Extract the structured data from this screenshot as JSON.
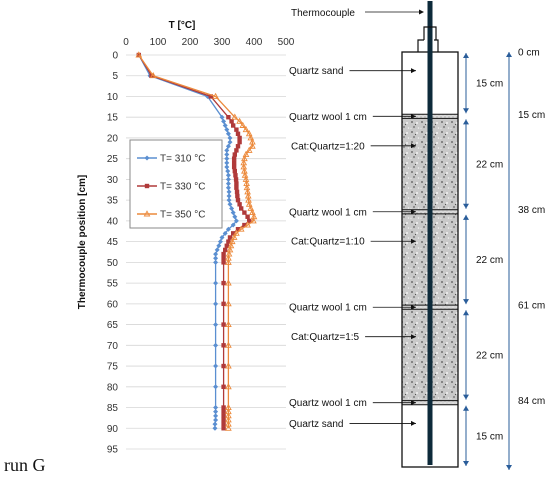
{
  "caption": "run G",
  "chart_data": {
    "type": "line",
    "orientation": "depth profile (position on vertical axis, temperature on horizontal axis)",
    "xlabel": "T [°C]",
    "ylabel": "Thermocouple position [cm]",
    "xlim": [
      0,
      500
    ],
    "ylim": [
      0,
      95
    ],
    "xticks": [
      "0",
      "100",
      "200",
      "300",
      "400",
      "500"
    ],
    "yticks": [
      "0",
      "5",
      "10",
      "15",
      "20",
      "25",
      "30",
      "35",
      "40",
      "45",
      "50",
      "55",
      "60",
      "65",
      "70",
      "75",
      "80",
      "85",
      "90",
      "95"
    ],
    "grid": "horizontal gridlines",
    "legend": "left-center, boxed",
    "series": [
      {
        "name": "T= 310 °C",
        "color": "#5b8fd1",
        "marker": "diamond",
        "points": [
          [
            40,
            0
          ],
          [
            75,
            5
          ],
          [
            255,
            10
          ],
          [
            300,
            15
          ],
          [
            305,
            16
          ],
          [
            310,
            17
          ],
          [
            315,
            18
          ],
          [
            320,
            19
          ],
          [
            325,
            20
          ],
          [
            325,
            21
          ],
          [
            320,
            22
          ],
          [
            315,
            23
          ],
          [
            315,
            24
          ],
          [
            315,
            25
          ],
          [
            315,
            26
          ],
          [
            315,
            27
          ],
          [
            318,
            28
          ],
          [
            320,
            29
          ],
          [
            320,
            30
          ],
          [
            320,
            31
          ],
          [
            320,
            32
          ],
          [
            322,
            33
          ],
          [
            322,
            34
          ],
          [
            322,
            35
          ],
          [
            325,
            36
          ],
          [
            330,
            37
          ],
          [
            335,
            38
          ],
          [
            340,
            39
          ],
          [
            345,
            40
          ],
          [
            335,
            41
          ],
          [
            320,
            42
          ],
          [
            310,
            43
          ],
          [
            300,
            44
          ],
          [
            295,
            45
          ],
          [
            290,
            46
          ],
          [
            285,
            47
          ],
          [
            280,
            48
          ],
          [
            280,
            49
          ],
          [
            280,
            50
          ],
          [
            280,
            55
          ],
          [
            280,
            60
          ],
          [
            280,
            65
          ],
          [
            280,
            70
          ],
          [
            280,
            75
          ],
          [
            280,
            80
          ],
          [
            280,
            85
          ],
          [
            280,
            86
          ],
          [
            280,
            87
          ],
          [
            280,
            88
          ],
          [
            278,
            89
          ],
          [
            278,
            90
          ]
        ]
      },
      {
        "name": "T= 330 °C",
        "color": "#b03a3a",
        "marker": "square",
        "points": [
          [
            40,
            0
          ],
          [
            80,
            5
          ],
          [
            265,
            10
          ],
          [
            320,
            15
          ],
          [
            330,
            16
          ],
          [
            335,
            17
          ],
          [
            345,
            18
          ],
          [
            350,
            19
          ],
          [
            355,
            20
          ],
          [
            355,
            21
          ],
          [
            350,
            22
          ],
          [
            345,
            23
          ],
          [
            340,
            24
          ],
          [
            338,
            25
          ],
          [
            338,
            26
          ],
          [
            338,
            27
          ],
          [
            340,
            28
          ],
          [
            342,
            29
          ],
          [
            344,
            30
          ],
          [
            345,
            31
          ],
          [
            345,
            32
          ],
          [
            347,
            33
          ],
          [
            348,
            34
          ],
          [
            350,
            35
          ],
          [
            355,
            36
          ],
          [
            360,
            37
          ],
          [
            370,
            38
          ],
          [
            380,
            39
          ],
          [
            385,
            40
          ],
          [
            370,
            41
          ],
          [
            350,
            42
          ],
          [
            335,
            43
          ],
          [
            325,
            44
          ],
          [
            320,
            45
          ],
          [
            315,
            46
          ],
          [
            310,
            47
          ],
          [
            305,
            48
          ],
          [
            305,
            49
          ],
          [
            305,
            50
          ],
          [
            305,
            55
          ],
          [
            305,
            60
          ],
          [
            305,
            65
          ],
          [
            305,
            70
          ],
          [
            305,
            75
          ],
          [
            305,
            80
          ],
          [
            305,
            85
          ],
          [
            305,
            86
          ],
          [
            305,
            87
          ],
          [
            305,
            88
          ],
          [
            305,
            89
          ],
          [
            305,
            90
          ]
        ]
      },
      {
        "name": "T= 350 °C",
        "color": "#ec8a3c",
        "marker": "triangle",
        "points": [
          [
            40,
            0
          ],
          [
            85,
            5
          ],
          [
            280,
            10
          ],
          [
            340,
            15
          ],
          [
            355,
            16
          ],
          [
            365,
            17
          ],
          [
            375,
            18
          ],
          [
            385,
            19
          ],
          [
            390,
            20
          ],
          [
            395,
            21
          ],
          [
            395,
            22
          ],
          [
            385,
            23
          ],
          [
            375,
            24
          ],
          [
            370,
            25
          ],
          [
            368,
            26
          ],
          [
            368,
            27
          ],
          [
            370,
            28
          ],
          [
            372,
            29
          ],
          [
            375,
            30
          ],
          [
            377,
            31
          ],
          [
            378,
            32
          ],
          [
            380,
            33
          ],
          [
            382,
            34
          ],
          [
            383,
            35
          ],
          [
            385,
            36
          ],
          [
            390,
            37
          ],
          [
            395,
            38
          ],
          [
            400,
            39
          ],
          [
            398,
            40
          ],
          [
            380,
            41
          ],
          [
            360,
            42
          ],
          [
            345,
            43
          ],
          [
            338,
            44
          ],
          [
            332,
            45
          ],
          [
            328,
            46
          ],
          [
            325,
            47
          ],
          [
            322,
            48
          ],
          [
            320,
            49
          ],
          [
            320,
            50
          ],
          [
            320,
            55
          ],
          [
            320,
            60
          ],
          [
            320,
            65
          ],
          [
            320,
            70
          ],
          [
            320,
            75
          ],
          [
            320,
            80
          ],
          [
            320,
            85
          ],
          [
            320,
            86
          ],
          [
            320,
            87
          ],
          [
            320,
            88
          ],
          [
            320,
            89
          ],
          [
            320,
            90
          ]
        ]
      }
    ]
  },
  "reactor": {
    "thermocouple_label": "Thermocouple",
    "sections": [
      {
        "label": "Quartz sand",
        "fill": "white",
        "top": 0,
        "bottom": 15
      },
      {
        "label": "Quartz wool 1 cm",
        "fill": "wool",
        "top": 15,
        "bottom": 16
      },
      {
        "label": "Cat:Quartz=1:20",
        "fill": "granular",
        "top": 16,
        "bottom": 38
      },
      {
        "label": "Quartz wool 1 cm",
        "fill": "wool",
        "top": 38,
        "bottom": 39
      },
      {
        "label": "Cat:Quartz=1:10",
        "fill": "granular",
        "top": 39,
        "bottom": 61
      },
      {
        "label": "Quartz wool 1 cm",
        "fill": "wool",
        "top": 61,
        "bottom": 62
      },
      {
        "label": "Cat:Quartz=1:5",
        "fill": "granular",
        "top": 62,
        "bottom": 84
      },
      {
        "label": "Quartz wool 1 cm",
        "fill": "wool",
        "top": 84,
        "bottom": 85
      },
      {
        "label": "Quartz sand",
        "fill": "white",
        "top": 85,
        "bottom": 100
      }
    ],
    "lengths": [
      "15 cm",
      "22 cm",
      "22 cm",
      "22 cm",
      "15 cm"
    ],
    "positions": [
      "0 cm",
      "15 cm",
      "38 cm",
      "61 cm",
      "84 cm"
    ]
  }
}
